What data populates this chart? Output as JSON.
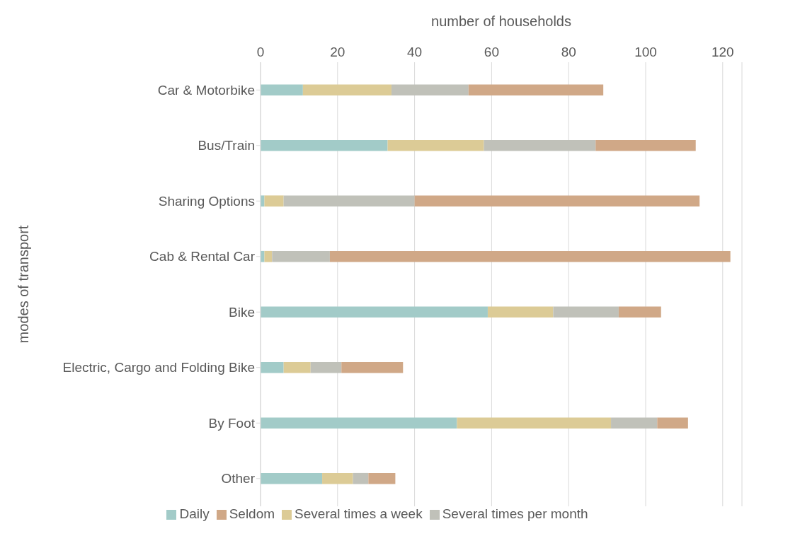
{
  "chart_data": {
    "type": "bar",
    "orientation": "horizontal",
    "stacked": true,
    "xlabel": "number of households",
    "ylabel": "modes of transport",
    "categories": [
      "Car & Motorbike",
      "Bus/Train",
      "Sharing Options",
      "Cab & Rental Car",
      "Bike",
      "Electric, Cargo and Folding Bike",
      "By Foot",
      "Other"
    ],
    "series": [
      {
        "name": "Daily",
        "color": "#a2cbc8",
        "values": [
          11,
          33,
          1,
          1,
          59,
          6,
          51,
          16
        ]
      },
      {
        "name": "Several times a week",
        "color": "#dccb96",
        "values": [
          23,
          25,
          5,
          2,
          17,
          7,
          40,
          8
        ]
      },
      {
        "name": "Several times per month",
        "color": "#c0c1b9",
        "values": [
          20,
          29,
          34,
          15,
          17,
          8,
          12,
          4
        ]
      },
      {
        "name": "Seldom",
        "color": "#d0a887",
        "values": [
          35,
          26,
          74,
          104,
          11,
          16,
          8,
          7
        ]
      }
    ],
    "xlim": [
      0,
      125
    ],
    "xticks": [
      0,
      20,
      40,
      60,
      80,
      100,
      120
    ],
    "grid": "x",
    "legend": "bottom"
  }
}
